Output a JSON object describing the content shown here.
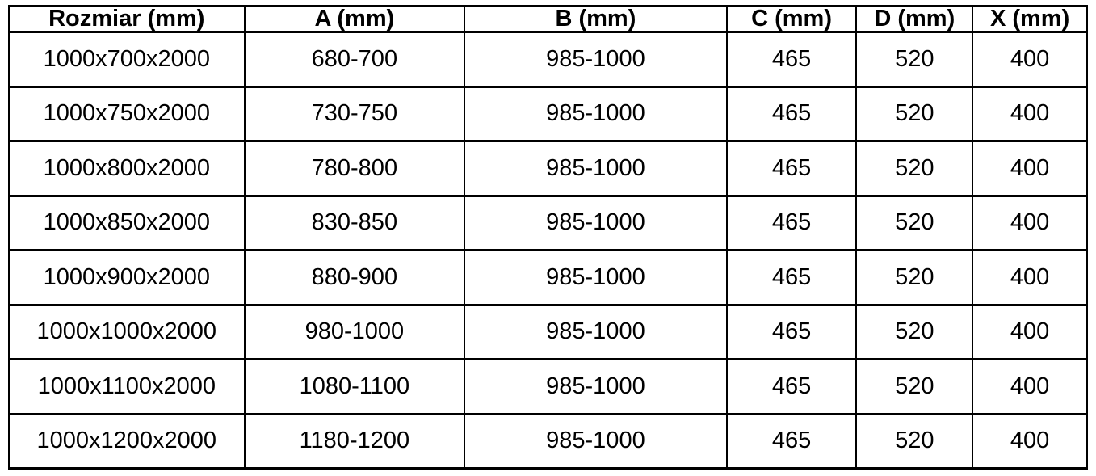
{
  "table": {
    "headers": [
      "Rozmiar (mm)",
      "A (mm)",
      "B (mm)",
      "C (mm)",
      "D (mm)",
      "X (mm)"
    ],
    "rows": [
      [
        "1000x700x2000",
        "680-700",
        "985-1000",
        "465",
        "520",
        "400"
      ],
      [
        "1000x750x2000",
        "730-750",
        "985-1000",
        "465",
        "520",
        "400"
      ],
      [
        "1000x800x2000",
        "780-800",
        "985-1000",
        "465",
        "520",
        "400"
      ],
      [
        "1000x850x2000",
        "830-850",
        "985-1000",
        "465",
        "520",
        "400"
      ],
      [
        "1000x900x2000",
        "880-900",
        "985-1000",
        "465",
        "520",
        "400"
      ],
      [
        "1000x1000x2000",
        "980-1000",
        "985-1000",
        "465",
        "520",
        "400"
      ],
      [
        "1000x1100x2000",
        "1080-1100",
        "985-1000",
        "465",
        "520",
        "400"
      ],
      [
        "1000x1200x2000",
        "1180-1200",
        "985-1000",
        "465",
        "520",
        "400"
      ]
    ],
    "colors": {
      "border": "#000000",
      "text": "#000000",
      "background": "#ffffff"
    }
  }
}
